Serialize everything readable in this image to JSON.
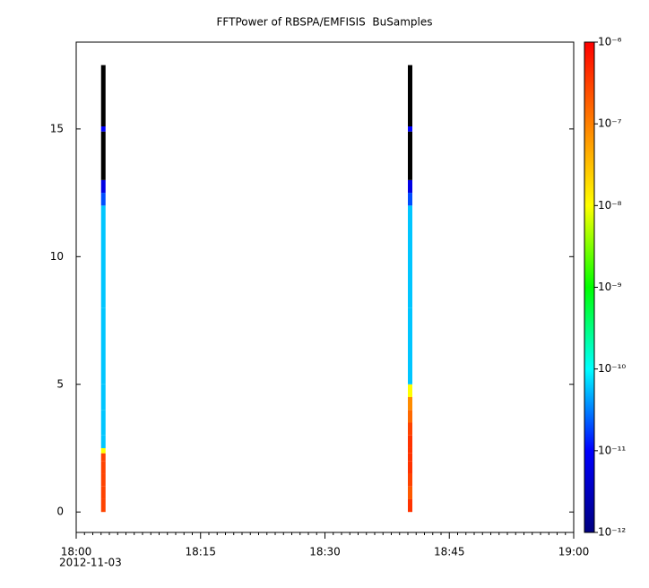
{
  "chart_data": {
    "type": "spectrogram",
    "title": "FFTPower of RBSPA/EMFISIS  BuSamples",
    "xlim": [
      "18:00",
      "19:00"
    ],
    "xticks": [
      "18:00",
      "18:15",
      "18:30",
      "18:45",
      "19:00"
    ],
    "x_date_label": "2012-11-03",
    "ylim": [
      -0.8,
      18.4
    ],
    "yticks": [
      0,
      5,
      10,
      15
    ],
    "bins": [
      0,
      0.5,
      1,
      1.5,
      2,
      2.3,
      2.5,
      3,
      3.5,
      4,
      4.5,
      5,
      8,
      12,
      12.5,
      13,
      14.9,
      15.1,
      17.5
    ],
    "columns": [
      {
        "x": "18:03",
        "values": [
          3e-07,
          3e-07,
          3e-07,
          3e-07,
          3e-07,
          1e-08,
          6e-11,
          6e-11,
          6e-11,
          6e-11,
          6e-11,
          6e-11,
          6e-11,
          2e-11,
          6e-12,
          8e-13,
          1e-11,
          8e-13
        ]
      },
      {
        "x": "18:40",
        "values": [
          4e-07,
          2e-07,
          3e-07,
          4e-07,
          4e-07,
          4e-07,
          4e-07,
          3e-07,
          1.5e-07,
          8e-08,
          1e-08,
          6e-11,
          6e-11,
          2e-11,
          6e-12,
          8e-13,
          1e-11,
          8e-13
        ]
      }
    ],
    "clim": [
      1e-12,
      1e-06
    ],
    "log_color_scale": true,
    "colors": [
      "#000080",
      "#0000ff",
      "#00ffff",
      "#00ff00",
      "#ffff00",
      "#ff8000",
      "#ff0000"
    ],
    "under_color": "#000000",
    "cticks": [
      {
        "value": 1e-06,
        "label": "10⁻⁶"
      },
      {
        "value": 1e-07,
        "label": "10⁻⁷"
      },
      {
        "value": 1e-08,
        "label": "10⁻⁸"
      },
      {
        "value": 1e-09,
        "label": "10⁻⁹"
      },
      {
        "value": 1e-10,
        "label": "10⁻¹⁰"
      },
      {
        "value": 1e-11,
        "label": "10⁻¹¹"
      },
      {
        "value": 1e-12,
        "label": "10⁻¹²"
      }
    ]
  }
}
